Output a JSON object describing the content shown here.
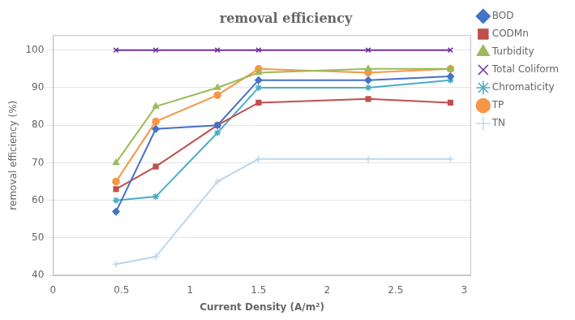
{
  "chart_data": {
    "type": "line",
    "title": "removal efficiency",
    "x_label": "Current Density (A/m²)",
    "y_label": "removal efficiency (%)",
    "x": [
      0.46,
      0.75,
      1.2,
      1.5,
      2.3,
      2.9
    ],
    "xlim": [
      0,
      3.05
    ],
    "ylim": [
      40,
      104
    ],
    "xticks": [
      0,
      0.5,
      1,
      1.5,
      2,
      2.5,
      3
    ],
    "yticks": [
      40,
      50,
      60,
      70,
      80,
      90,
      100
    ],
    "grid": "y",
    "legend": "right",
    "series": [
      {
        "name": "BOD",
        "color": "#4472C4",
        "marker": "diamond",
        "values": [
          57,
          79,
          80,
          92,
          92,
          93
        ]
      },
      {
        "name": "CODMn",
        "color": "#C0504D",
        "marker": "square",
        "values": [
          63,
          69,
          80,
          86,
          87,
          86
        ]
      },
      {
        "name": "Turbidity",
        "color": "#9BBB59",
        "marker": "triangle",
        "values": [
          70,
          85,
          90,
          94,
          95,
          95
        ]
      },
      {
        "name": "Total Coliform",
        "color": "#7030A0",
        "marker": "x",
        "values": [
          100,
          100,
          100,
          100,
          100,
          100
        ]
      },
      {
        "name": "Chromaticity",
        "color": "#4BACC6",
        "marker": "star",
        "values": [
          60,
          61,
          78,
          90,
          90,
          92
        ]
      },
      {
        "name": "TP",
        "color": "#F79646",
        "marker": "circle",
        "values": [
          65,
          81,
          88,
          95,
          94,
          95
        ]
      },
      {
        "name": "TN",
        "color": "#BDD7EE",
        "marker": "plus",
        "values": [
          43,
          45,
          65,
          71,
          71,
          71
        ]
      }
    ]
  }
}
